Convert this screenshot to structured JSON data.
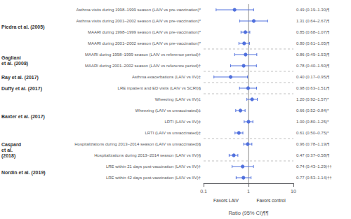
{
  "chart_data": {
    "type": "forest",
    "xlabel": "Ratio (95% CI)¶¶",
    "annotations_below": [
      "Favors LAIV",
      "Favors control"
    ],
    "categories": [
      "Asthma visits during 1998–1999 season (LAIV vs pre-vaccination)*",
      "Asthma visits during 2001–2002 season (LAIV vs pre-vaccination)*",
      "MAARI during 1998–1999 season (LAIV vs pre-vaccination)*",
      "MAARI during 2001–2002 season (LAIV vs pre-vaccination)*",
      "MAARI during 1998–1999 season (LAIV vs reference period)†",
      "MAARI during 2001–2002 season (LAIV vs reference period)†",
      "Asthma exacerbations (LAIV vs IIV)‡",
      "LRE inpatient and ED visits (LAIV vs SCRI)§",
      "Wheezing (LAIV vs IIV)‡",
      "Wheezing (LAIV vs unvaccinated)‡",
      "LRTI (LAIV vs IIV)‡",
      "LRTI (LAIV vs unvaccinated)‡",
      "Hospitalizations during 2013–2014 season (LAIV vs unvaccinated)§",
      "Hospitalizations during 2013–2014 season (LAIV vs IIV)§",
      "LRE within 21 days post-vaccination (LAIV vs IIV)†",
      "LRE within 42 days post-vaccination (LAIV vs IIV)†"
    ],
    "groups": [
      "Piedra et al. (2005)",
      "Piedra et al. (2005)",
      "Piedra et al. (2005)",
      "Piedra et al. (2005)",
      "Gagliani\net al. (2008)",
      "Gagliani\net al. (2008)",
      "Ray et al. (2017)",
      "Duffy et al. (2017)",
      "Baxter et al. (2017)",
      "Baxter et al. (2017)",
      "Baxter et al. (2017)",
      "Baxter et al. (2017)",
      "Caspard\net al.\n(2018)",
      "Caspard\net al.\n(2018)",
      "Nordin et al. (2019)",
      "Nordin et al. (2019)"
    ],
    "values": [
      0.49,
      1.31,
      0.85,
      0.8,
      0.86,
      0.78,
      0.4,
      0.98,
      1.2,
      0.66,
      1.0,
      0.61,
      0.96,
      0.47,
      0.74,
      0.77
    ],
    "ci_low": [
      0.19,
      0.64,
      0.68,
      0.61,
      0.49,
      0.4,
      0.17,
      0.63,
      0.92,
      0.52,
      0.8,
      0.5,
      0.78,
      0.37,
      0.43,
      0.53
    ],
    "ci_high": [
      1.3,
      2.67,
      1.07,
      1.05,
      1.53,
      1.5,
      0.95,
      1.51,
      1.57,
      0.84,
      1.25,
      0.75,
      1.19,
      0.58,
      1.29,
      1.14
    ],
    "annotations": [
      "0.49 (0.19–1.30)¶",
      "1.31 (0.64–2.67)¶",
      "0.85 (0.68–1.07)¶",
      "0.80 (0.61–1.05)¶",
      "0.86 (0.49–1.53)¶",
      "0.78 (0.40–1.50)¶",
      "0.40 (0.17–0.95)¶",
      "0.98 (0.63–1.51)¶",
      "1.20 (0.92–1.57)*",
      "0.66 (0.52–0.84)*",
      "1.00 (0.80–1.25)*",
      "0.61 (0.50–0.75)*",
      "0.96 (0.78–1.19)¶",
      "0.47 (0.37–0.58)¶",
      "0.74 (0.43–1.29)††",
      "0.77 (0.53–1.14)††"
    ],
    "reference": 1.0,
    "log": "x",
    "xlim": [
      0.1,
      10.0
    ],
    "xticks": [
      0.1,
      1.0,
      10.0
    ],
    "grid": false
  }
}
